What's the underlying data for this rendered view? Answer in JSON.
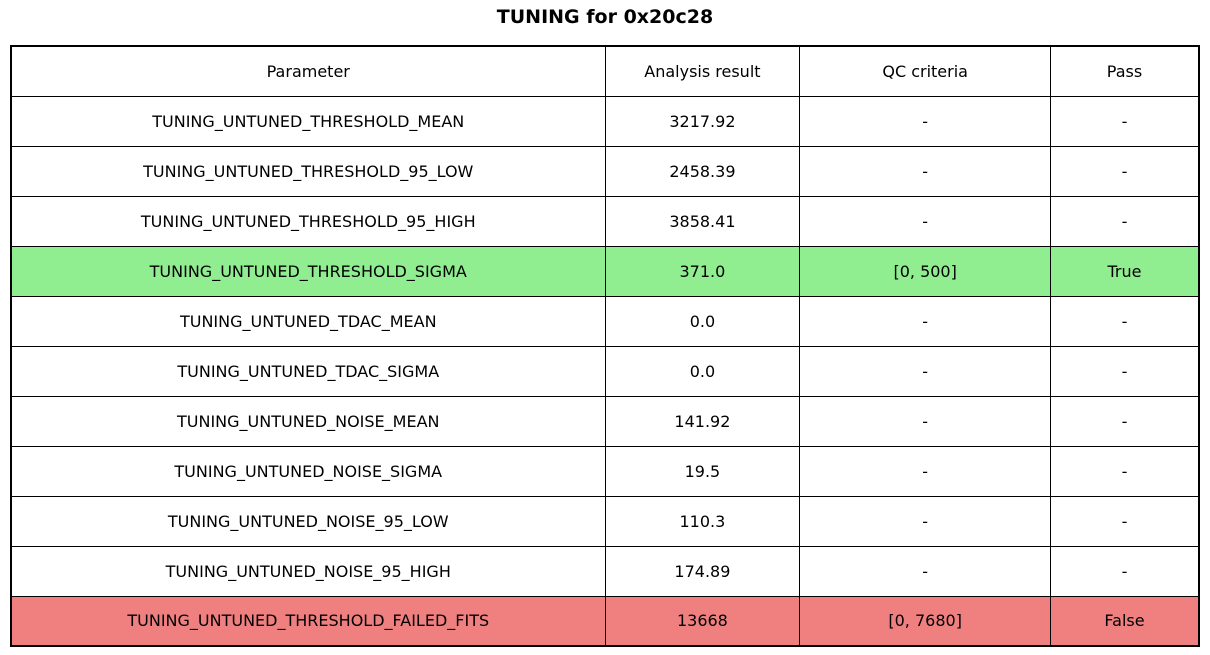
{
  "title": "TUNING for 0x20c28",
  "colors": {
    "pass_row": "#90ee90",
    "fail_row": "#f08080",
    "border": "#000000",
    "background": "#ffffff"
  },
  "chart_data": {
    "type": "table",
    "title": "TUNING for 0x20c28",
    "columns": [
      "Parameter",
      "Analysis result",
      "QC criteria",
      "Pass"
    ],
    "rows": [
      {
        "parameter": "TUNING_UNTUNED_THRESHOLD_MEAN",
        "analysis_result": "3217.92",
        "qc_criteria": "-",
        "pass": "-",
        "status": "none"
      },
      {
        "parameter": "TUNING_UNTUNED_THRESHOLD_95_LOW",
        "analysis_result": "2458.39",
        "qc_criteria": "-",
        "pass": "-",
        "status": "none"
      },
      {
        "parameter": "TUNING_UNTUNED_THRESHOLD_95_HIGH",
        "analysis_result": "3858.41",
        "qc_criteria": "-",
        "pass": "-",
        "status": "none"
      },
      {
        "parameter": "TUNING_UNTUNED_THRESHOLD_SIGMA",
        "analysis_result": "371.0",
        "qc_criteria": "[0, 500]",
        "pass": "True",
        "status": "pass"
      },
      {
        "parameter": "TUNING_UNTUNED_TDAC_MEAN",
        "analysis_result": "0.0",
        "qc_criteria": "-",
        "pass": "-",
        "status": "none"
      },
      {
        "parameter": "TUNING_UNTUNED_TDAC_SIGMA",
        "analysis_result": "0.0",
        "qc_criteria": "-",
        "pass": "-",
        "status": "none"
      },
      {
        "parameter": "TUNING_UNTUNED_NOISE_MEAN",
        "analysis_result": "141.92",
        "qc_criteria": "-",
        "pass": "-",
        "status": "none"
      },
      {
        "parameter": "TUNING_UNTUNED_NOISE_SIGMA",
        "analysis_result": "19.5",
        "qc_criteria": "-",
        "pass": "-",
        "status": "none"
      },
      {
        "parameter": "TUNING_UNTUNED_NOISE_95_LOW",
        "analysis_result": "110.3",
        "qc_criteria": "-",
        "pass": "-",
        "status": "none"
      },
      {
        "parameter": "TUNING_UNTUNED_NOISE_95_HIGH",
        "analysis_result": "174.89",
        "qc_criteria": "-",
        "pass": "-",
        "status": "none"
      },
      {
        "parameter": "TUNING_UNTUNED_THRESHOLD_FAILED_FITS",
        "analysis_result": "13668",
        "qc_criteria": "[0, 7680]",
        "pass": "False",
        "status": "fail"
      }
    ]
  }
}
